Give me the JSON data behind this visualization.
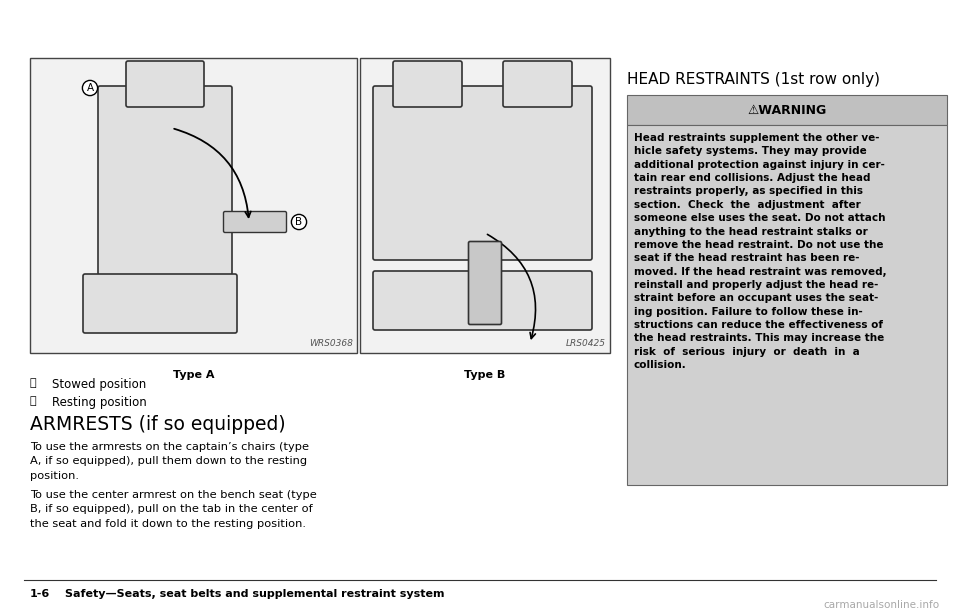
{
  "bg_color": "#ffffff",
  "page_width": 9.6,
  "page_height": 6.11,
  "left_image_label": "Type A",
  "right_image_label": "Type B",
  "left_image_code": "WRS0368",
  "right_image_code": "LRS0425",
  "label_A": "Stowed position",
  "label_B": "Resting position",
  "section_title": "ARMRESTS (if so equipped)",
  "para1": "To use the armrests on the captain’s chairs (type\nA, if so equipped), pull them down to the resting\nposition.",
  "para2": "To use the center armrest on the bench seat (type\nB, if so equipped), pull on the tab in the center of\nthe seat and fold it down to the resting position.",
  "right_section_title": "HEAD RESTRAINTS (1st row only)",
  "warning_header": "⚠WARNING",
  "warning_text": "Head restraints supplement the other ve-\nhicle safety systems. They may provide\nadditional protection against injury in cer-\ntain rear end collisions. Adjust the head\nrestraints properly, as specified in this\nsection.  Check  the  adjustment  after\nsomeone else uses the seat. Do not attach\nanything to the head restraint stalks or\nremove the head restraint. Do not use the\nseat if the head restraint has been re-\nmoved. If the head restraint was removed,\nreinstall and properly adjust the head re-\nstraint before an occupant uses the seat-\ning position. Failure to follow these in-\nstructions can reduce the effectiveness of\nthe head restraints. This may increase the\nrisk  of  serious  injury  or  death  in  a\ncollision.",
  "footer_prefix": "1-6",
  "footer_text": "Safety—Seats, seat belts and supplemental restraint system",
  "watermark_text": "carmanualsonline.info",
  "warn_triangle": "⚠",
  "img_box_fill": "#f2f2f2",
  "img_box_edge": "#444444",
  "warn_box_fill": "#cccccc",
  "warn_header_fill": "#bbbbbb",
  "warn_body_fill": "#cccccc"
}
